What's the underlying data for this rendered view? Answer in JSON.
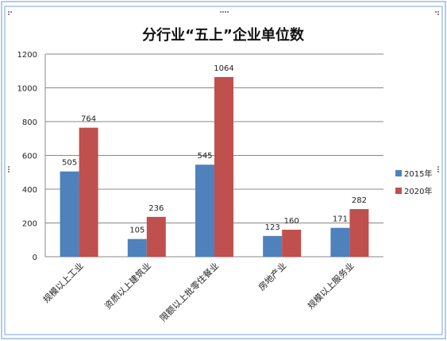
{
  "chart_data": {
    "type": "bar",
    "title": "分行业“五上”企业单位数",
    "categories": [
      "规模以上工业",
      "资质以上建筑业",
      "限额以上批零住餐业",
      "房地产业",
      "规模以上服务业"
    ],
    "series": [
      {
        "name": "2015年",
        "values": [
          505,
          105,
          545,
          123,
          171
        ],
        "color": "#4f81bd"
      },
      {
        "name": "2020年",
        "values": [
          764,
          236,
          1064,
          160,
          282
        ],
        "color": "#c0504d"
      }
    ],
    "y_ticks": [
      "0",
      "200",
      "400",
      "600",
      "800",
      "1000",
      "1200"
    ],
    "ylim": [
      0,
      1200
    ],
    "grid": true,
    "legend_position": "right"
  },
  "colors": {
    "frame_border": "#7aa6d6",
    "gridline": "#888888",
    "axis": "#888888"
  }
}
